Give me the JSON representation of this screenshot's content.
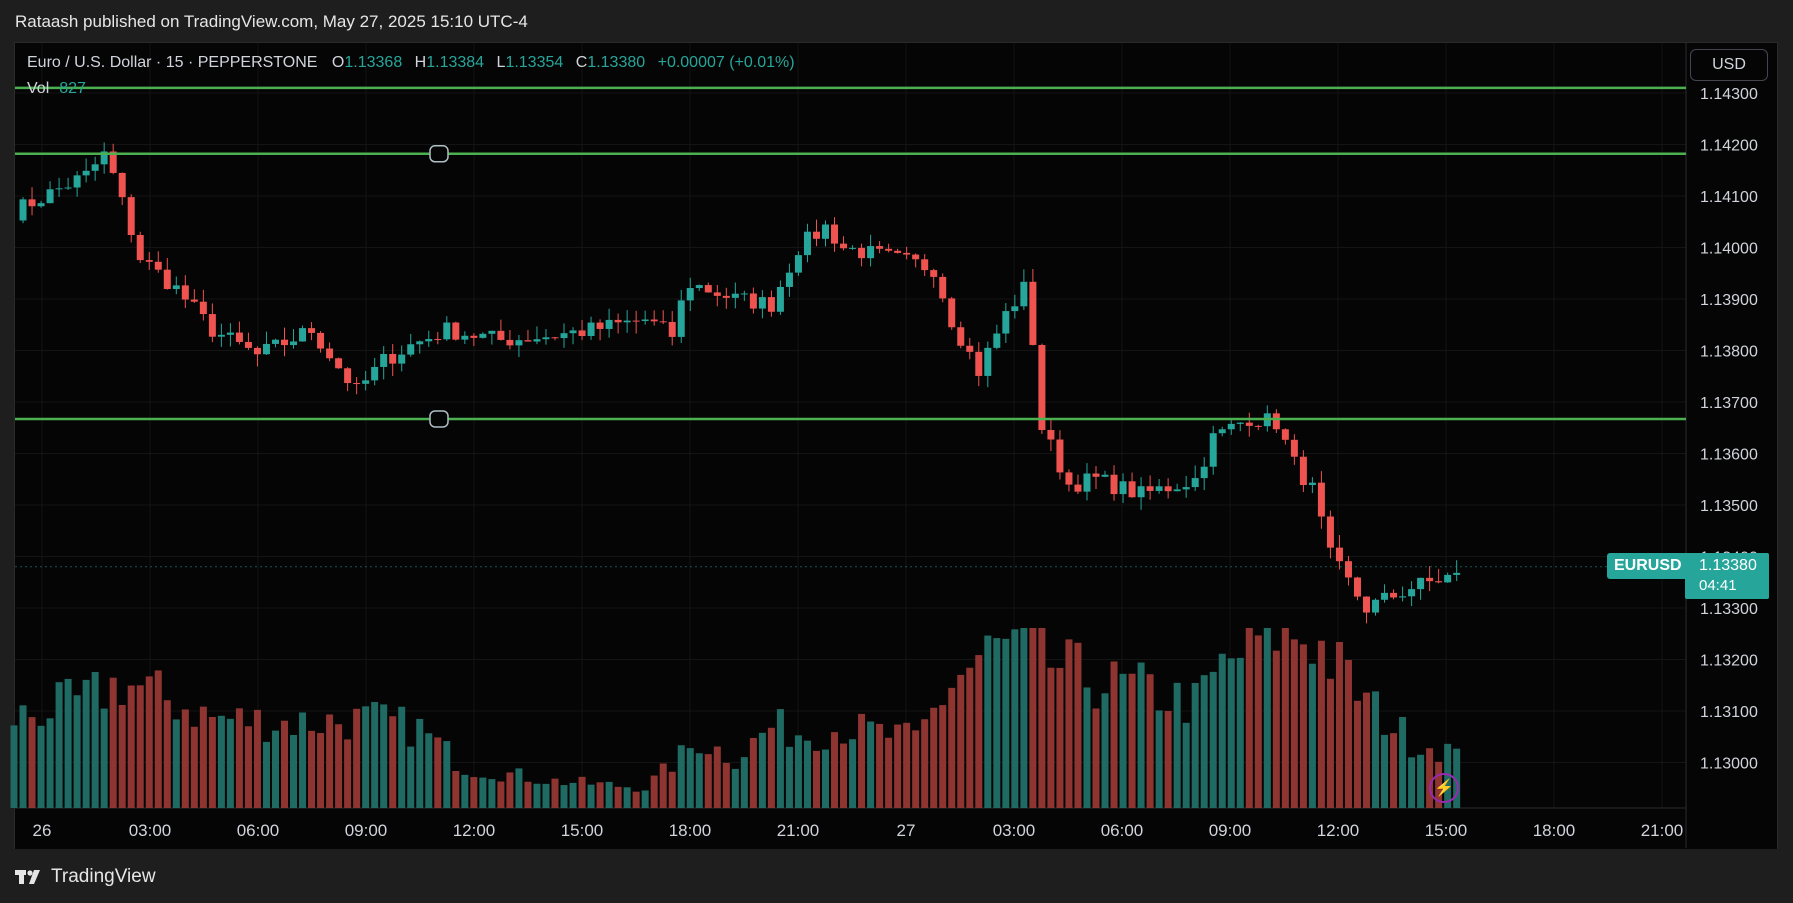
{
  "publisher_line": "Rataash published on TradingView.com, May 27, 2025 15:10 UTC-4",
  "legend": {
    "symbol": "Euro / U.S. Dollar · 15 · PEPPERSTONE",
    "o_label": "O",
    "o_value": "1.13368",
    "h_label": "H",
    "h_value": "1.13384",
    "l_label": "L",
    "l_value": "1.13354",
    "c_label": "C",
    "c_value": "1.13380",
    "change": "+0.00007 (+0.01%)",
    "vol_label": "Vol",
    "vol_value": "827"
  },
  "currency_button": "USD",
  "price_label": {
    "symbol": "EURUSD",
    "price": "1.13380",
    "countdown": "04:41"
  },
  "footer": {
    "brand": "TradingView"
  },
  "icons": {
    "lightning": "lightning-icon",
    "logo": "tradingview-logo-icon"
  },
  "colors": {
    "up": "#26a69a",
    "down": "#ef5350",
    "vol_up": "#1f6b63",
    "vol_down": "#8f3531",
    "level": "#4caf50",
    "background": "#050505",
    "grid": "#141414"
  },
  "chart_data": {
    "type": "candlestick",
    "interval": "15",
    "y_ticks": [
      "1.14300",
      "1.14200",
      "1.14100",
      "1.14000",
      "1.13900",
      "1.13800",
      "1.13700",
      "1.13600",
      "1.13500",
      "1.13400",
      "1.13300",
      "1.13200",
      "1.13100",
      "1.13000"
    ],
    "x_ticks": [
      "26",
      "03:00",
      "06:00",
      "09:00",
      "12:00",
      "15:00",
      "18:00",
      "21:00",
      "27",
      "03:00",
      "06:00",
      "09:00",
      "12:00",
      "15:00",
      "18:00",
      "21:00"
    ],
    "ylim": [
      1.1293,
      1.1432
    ],
    "horizontal_levels": [
      1.1431,
      1.14182,
      1.13667
    ],
    "close_path": [
      [
        0,
        1.1407
      ],
      [
        8,
        1.1414
      ],
      [
        10,
        1.1418
      ],
      [
        11,
        1.1414
      ],
      [
        14,
        1.1398
      ],
      [
        18,
        1.1392
      ],
      [
        22,
        1.1384
      ],
      [
        27,
        1.1379
      ],
      [
        33,
        1.1384
      ],
      [
        38,
        1.1372
      ],
      [
        41,
        1.1378
      ],
      [
        44,
        1.1381
      ],
      [
        48,
        1.1384
      ],
      [
        54,
        1.1382
      ],
      [
        60,
        1.1383
      ],
      [
        64,
        1.1384
      ],
      [
        70,
        1.1386
      ],
      [
        73,
        1.1383
      ],
      [
        74,
        1.1389
      ],
      [
        75,
        1.1393
      ],
      [
        80,
        1.139
      ],
      [
        84,
        1.1389
      ],
      [
        87,
        1.14
      ],
      [
        90,
        1.1404
      ],
      [
        92,
        1.14
      ],
      [
        97,
        1.1398
      ],
      [
        102,
        1.1396
      ],
      [
        104,
        1.1386
      ],
      [
        107,
        1.1376
      ],
      [
        110,
        1.1387
      ],
      [
        112,
        1.1392
      ],
      [
        113,
        1.1382
      ],
      [
        114,
        1.1365
      ],
      [
        117,
        1.1354
      ],
      [
        120,
        1.1355
      ],
      [
        125,
        1.1352
      ],
      [
        131,
        1.1355
      ],
      [
        133,
        1.1363
      ],
      [
        137,
        1.1367
      ],
      [
        140,
        1.1366
      ],
      [
        142,
        1.1358
      ],
      [
        144,
        1.1353
      ],
      [
        146,
        1.134
      ],
      [
        150,
        1.133
      ],
      [
        155,
        1.1334
      ],
      [
        159,
        1.1336
      ]
    ],
    "volume_path": [
      [
        0,
        400
      ],
      [
        8,
        480
      ],
      [
        12,
        560
      ],
      [
        16,
        500
      ],
      [
        22,
        400
      ],
      [
        30,
        380
      ],
      [
        40,
        390
      ],
      [
        45,
        350
      ],
      [
        50,
        180
      ],
      [
        60,
        120
      ],
      [
        70,
        90
      ],
      [
        76,
        300
      ],
      [
        80,
        220
      ],
      [
        84,
        360
      ],
      [
        88,
        330
      ],
      [
        92,
        360
      ],
      [
        100,
        300
      ],
      [
        104,
        560
      ],
      [
        108,
        690
      ],
      [
        112,
        720
      ],
      [
        114,
        660
      ],
      [
        120,
        560
      ],
      [
        126,
        520
      ],
      [
        131,
        460
      ],
      [
        134,
        620
      ],
      [
        137,
        720
      ],
      [
        140,
        790
      ],
      [
        144,
        760
      ],
      [
        150,
        470
      ],
      [
        155,
        300
      ],
      [
        159,
        260
      ],
      [
        161,
        180
      ]
    ]
  }
}
